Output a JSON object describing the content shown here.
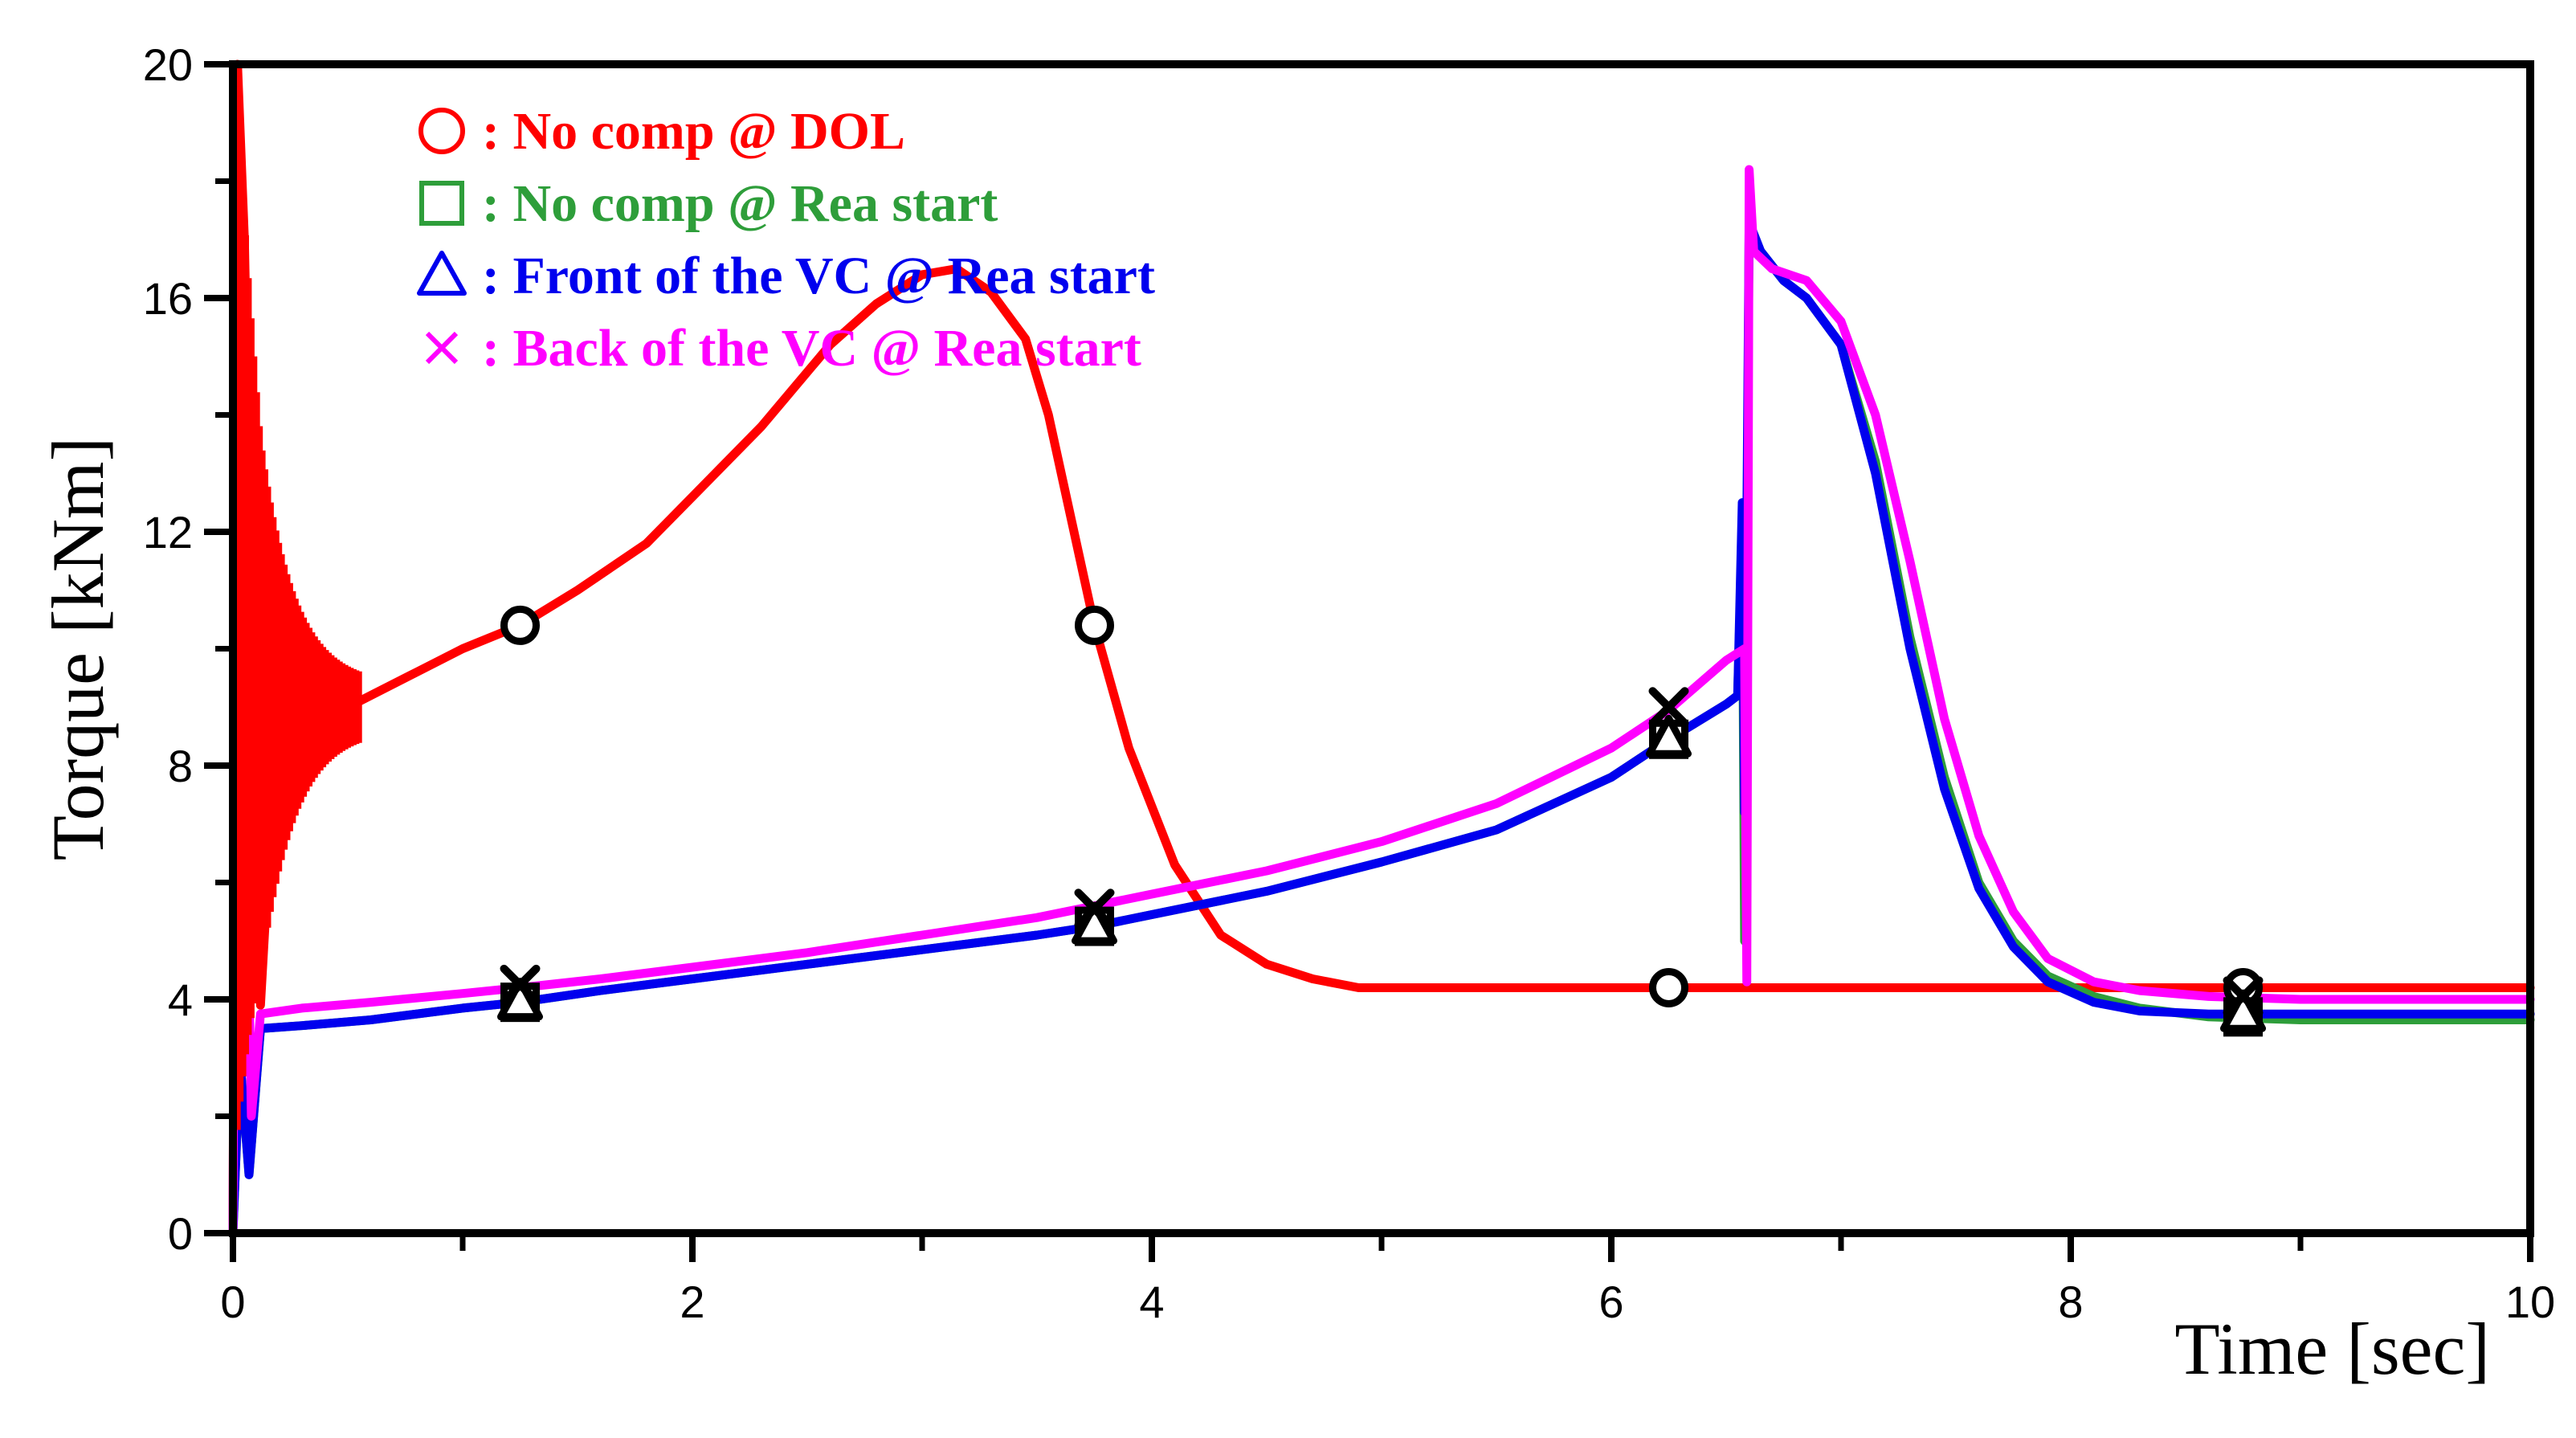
{
  "chart_data": {
    "type": "line",
    "xlabel": "Time [sec]",
    "ylabel": "Torque [kNm]",
    "xlim": [
      0,
      10
    ],
    "ylim": [
      0,
      20
    ],
    "xticks": [
      0,
      2,
      4,
      6,
      8,
      10
    ],
    "xtick_labels": [
      "0",
      "2",
      "4",
      "6",
      "8",
      "10"
    ],
    "yticks": [
      0,
      4,
      8,
      12,
      16,
      20
    ],
    "ytick_labels": [
      "0",
      "4",
      "8",
      "12",
      "16",
      "20"
    ],
    "grid": false,
    "legend_position": "top-left",
    "series": [
      {
        "name": ": No comp @ DOL",
        "color": "#ff0000",
        "marker": "circle",
        "x": [
          0,
          0.02,
          0.05,
          0.08,
          0.1,
          0.12,
          0.15,
          0.2,
          0.3,
          0.4,
          0.5,
          0.6,
          0.8,
          1.0,
          1.25,
          1.5,
          1.8,
          2.0,
          2.3,
          2.6,
          2.8,
          3.0,
          3.15,
          3.3,
          3.45,
          3.55,
          3.65,
          3.75,
          3.9,
          4.1,
          4.3,
          4.5,
          4.7,
          4.9,
          5.2,
          6.0,
          7.0,
          8.0,
          9.0,
          10.0
        ],
        "y": [
          0,
          20,
          17,
          11,
          6,
          3.9,
          6,
          8,
          9,
          9,
          9,
          9.2,
          9.6,
          10,
          10.4,
          11,
          11.8,
          12.6,
          13.8,
          15.2,
          15.9,
          16.4,
          16.5,
          16.1,
          15.3,
          14,
          12.2,
          10.4,
          8.3,
          6.3,
          5.1,
          4.6,
          4.35,
          4.2,
          4.2,
          4.2,
          4.2,
          4.2,
          4.2,
          4.2
        ],
        "marker_x": [
          1.25,
          3.75,
          6.25,
          8.75
        ],
        "marker_y": [
          10.4,
          10.4,
          4.2,
          4.2
        ]
      },
      {
        "name": ": No comp @ Rea start",
        "color": "#2e9e3a",
        "marker": "square",
        "x": [
          0,
          0.03,
          0.07,
          0.12,
          0.3,
          0.6,
          1.0,
          1.25,
          1.6,
          2.0,
          2.5,
          3.0,
          3.5,
          3.75,
          4.0,
          4.5,
          5.0,
          5.5,
          6.0,
          6.25,
          6.5,
          6.55,
          6.57,
          6.58,
          6.6,
          6.65,
          6.75,
          6.85,
          7.0,
          7.15,
          7.3,
          7.45,
          7.6,
          7.75,
          7.9,
          8.1,
          8.3,
          8.6,
          9.0,
          10.0
        ],
        "y": [
          0,
          3,
          1,
          3.5,
          3.55,
          3.65,
          3.85,
          3.95,
          4.15,
          4.35,
          4.6,
          4.85,
          5.1,
          5.25,
          5.45,
          5.85,
          6.35,
          6.9,
          7.8,
          8.45,
          9.05,
          9.2,
          12,
          5,
          17.2,
          16.8,
          16.3,
          16.0,
          15.2,
          13.2,
          10.2,
          7.8,
          6.0,
          5.0,
          4.4,
          4.05,
          3.85,
          3.7,
          3.65,
          3.65
        ],
        "marker_x": [
          1.25,
          3.75,
          6.25,
          8.75
        ],
        "marker_y": [
          3.95,
          5.25,
          8.45,
          3.7
        ]
      },
      {
        "name": ": Front of the VC @ Rea start",
        "color": "#0000ee",
        "marker": "triangle",
        "x": [
          0,
          0.03,
          0.07,
          0.12,
          0.3,
          0.6,
          1.0,
          1.25,
          1.6,
          2.0,
          2.5,
          3.0,
          3.5,
          3.75,
          4.0,
          4.5,
          5.0,
          5.5,
          6.0,
          6.25,
          6.5,
          6.55,
          6.57,
          6.58,
          6.6,
          6.65,
          6.75,
          6.85,
          7.0,
          7.15,
          7.3,
          7.45,
          7.6,
          7.75,
          7.9,
          8.1,
          8.3,
          8.6,
          9.0,
          10.0
        ],
        "y": [
          0,
          3,
          1,
          3.5,
          3.55,
          3.65,
          3.85,
          3.95,
          4.15,
          4.35,
          4.6,
          4.85,
          5.1,
          5.25,
          5.45,
          5.85,
          6.35,
          6.9,
          7.8,
          8.45,
          9.05,
          9.2,
          12.5,
          7.2,
          17.3,
          16.8,
          16.3,
          16.0,
          15.2,
          13.0,
          10.0,
          7.6,
          5.9,
          4.9,
          4.3,
          3.95,
          3.8,
          3.75,
          3.75,
          3.75
        ],
        "marker_x": [
          1.25,
          3.75,
          6.25,
          8.75
        ],
        "marker_y": [
          3.95,
          5.25,
          8.45,
          3.75
        ]
      },
      {
        "name": ": Back of the VC @ Rea start",
        "color": "#ff00ff",
        "marker": "x",
        "x": [
          0,
          0.02,
          0.05,
          0.08,
          0.12,
          0.3,
          0.6,
          1.0,
          1.25,
          1.6,
          2.0,
          2.5,
          3.0,
          3.5,
          3.75,
          4.0,
          4.5,
          5.0,
          5.5,
          6.0,
          6.25,
          6.5,
          6.58,
          6.59,
          6.6,
          6.62,
          6.7,
          6.85,
          7.0,
          7.15,
          7.3,
          7.45,
          7.6,
          7.75,
          7.9,
          8.1,
          8.3,
          8.6,
          9.0,
          10.0
        ],
        "y": [
          0,
          17,
          9,
          2,
          3.75,
          3.85,
          3.95,
          4.1,
          4.2,
          4.35,
          4.55,
          4.8,
          5.1,
          5.4,
          5.6,
          5.8,
          6.2,
          6.7,
          7.35,
          8.3,
          8.95,
          9.8,
          10.0,
          4.3,
          18.2,
          16.8,
          16.5,
          16.3,
          15.6,
          14.0,
          11.5,
          8.8,
          6.8,
          5.5,
          4.7,
          4.3,
          4.15,
          4.05,
          4.0,
          4.0
        ],
        "marker_x": [
          1.25,
          3.75,
          6.25,
          8.75
        ],
        "marker_y": [
          4.25,
          5.55,
          9.0,
          4.05
        ]
      }
    ]
  }
}
